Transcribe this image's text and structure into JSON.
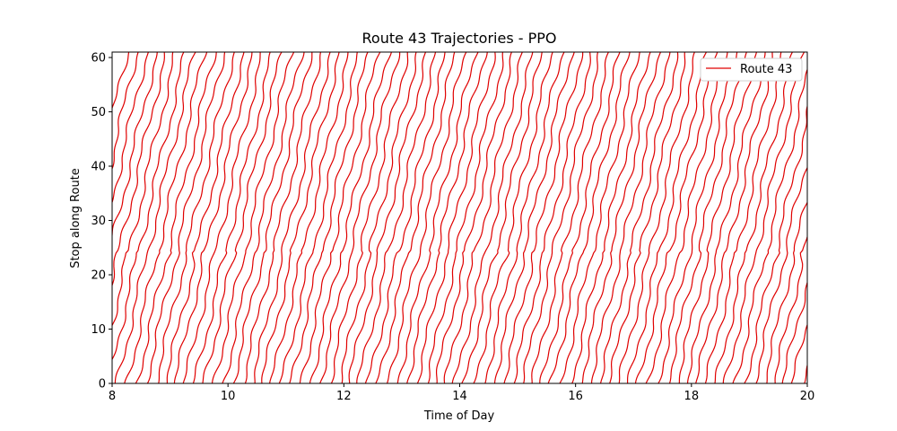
{
  "chart_data": {
    "type": "line",
    "title": "Route 43 Trajectories - PPO",
    "xlabel": "Time of Day",
    "ylabel": "Stop along Route",
    "xlim": [
      8,
      20
    ],
    "ylim": [
      0,
      61
    ],
    "xticks": [
      8,
      10,
      12,
      14,
      16,
      18,
      20
    ],
    "xtick_labels": [
      "8",
      "10",
      "12",
      "14",
      "16",
      "18",
      "20"
    ],
    "yticks": [
      0,
      10,
      20,
      30,
      40,
      50,
      60
    ],
    "ytick_labels": [
      "0",
      "10",
      "20",
      "30",
      "40",
      "50",
      "60"
    ],
    "grid": false,
    "legend": {
      "placement": "top-right",
      "entries": [
        "Route 43"
      ]
    },
    "series_color": "#e00000",
    "series": [
      {
        "name": "Route 43",
        "trip_start_times": [
          6.92,
          7.08,
          7.25,
          7.42,
          7.58,
          7.75,
          7.92,
          8.08,
          8.25,
          8.42,
          8.58,
          8.75,
          8.92,
          9.08,
          9.25,
          9.42,
          9.58,
          9.75,
          9.92,
          10.08,
          10.25,
          10.42,
          10.58,
          10.75,
          10.92,
          11.08,
          11.25,
          11.42,
          11.58,
          11.75,
          11.92,
          12.08,
          12.25,
          12.42,
          12.58,
          12.75,
          12.92,
          13.08,
          13.25,
          13.42,
          13.58,
          13.75,
          13.92,
          14.08,
          14.25,
          14.42,
          14.58,
          14.75,
          14.92,
          15.08,
          15.25,
          15.42,
          15.58,
          15.75,
          15.92,
          16.08,
          16.25,
          16.42,
          16.58,
          16.75,
          16.92,
          17.08,
          17.25,
          17.42,
          17.58,
          17.75,
          17.92,
          18.08,
          18.25,
          18.42,
          18.58,
          18.75,
          18.92,
          19.08,
          19.25,
          19.42,
          19.58,
          19.75,
          19.97
        ],
        "trip_duration_hours": 1.35,
        "max_stop": 61
      }
    ]
  }
}
